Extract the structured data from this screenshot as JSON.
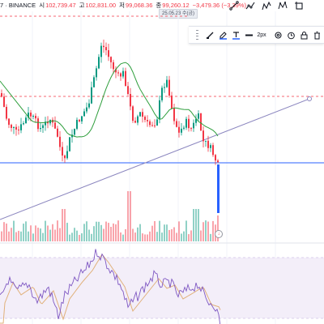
{
  "legend": {
    "symbol": "7 · BINANCE",
    "open_label": "시",
    "open_value": "102,739.47",
    "high_label": "고",
    "high_value": "102,831.00",
    "low_label": "저",
    "low_value": "99,068.36",
    "close_label": "종",
    "close_value": "99,260.12",
    "change": "−3,479.36 (−3.39%)"
  },
  "date_label": "25.05.23 수(금)",
  "toolbar": {
    "width_label": "2px"
  },
  "icons": {
    "top": [
      "trend-line-icon",
      "multi-line-icon",
      "path-icon",
      "pattern-icon",
      "crop-icon"
    ],
    "float": [
      "drag-grip-icon",
      "paint-brush-icon",
      "pencil-icon",
      "text-color-icon",
      "line-width-icon",
      "settings-icon",
      "alert-clock-icon",
      "lock-icon",
      "delete-icon",
      "more-icon"
    ]
  },
  "colors": {
    "up": "#089981",
    "down": "#f23645",
    "ma": "#2e9e3c",
    "trendline": "#8b86bf",
    "h_line": "#2962ff",
    "dashed_red": "#f23645",
    "rsi_line": "#7e57c2",
    "rsi_ma": "#e0b07a",
    "rsi_band": "#f3eef9"
  },
  "volume_marker": "↓"
}
